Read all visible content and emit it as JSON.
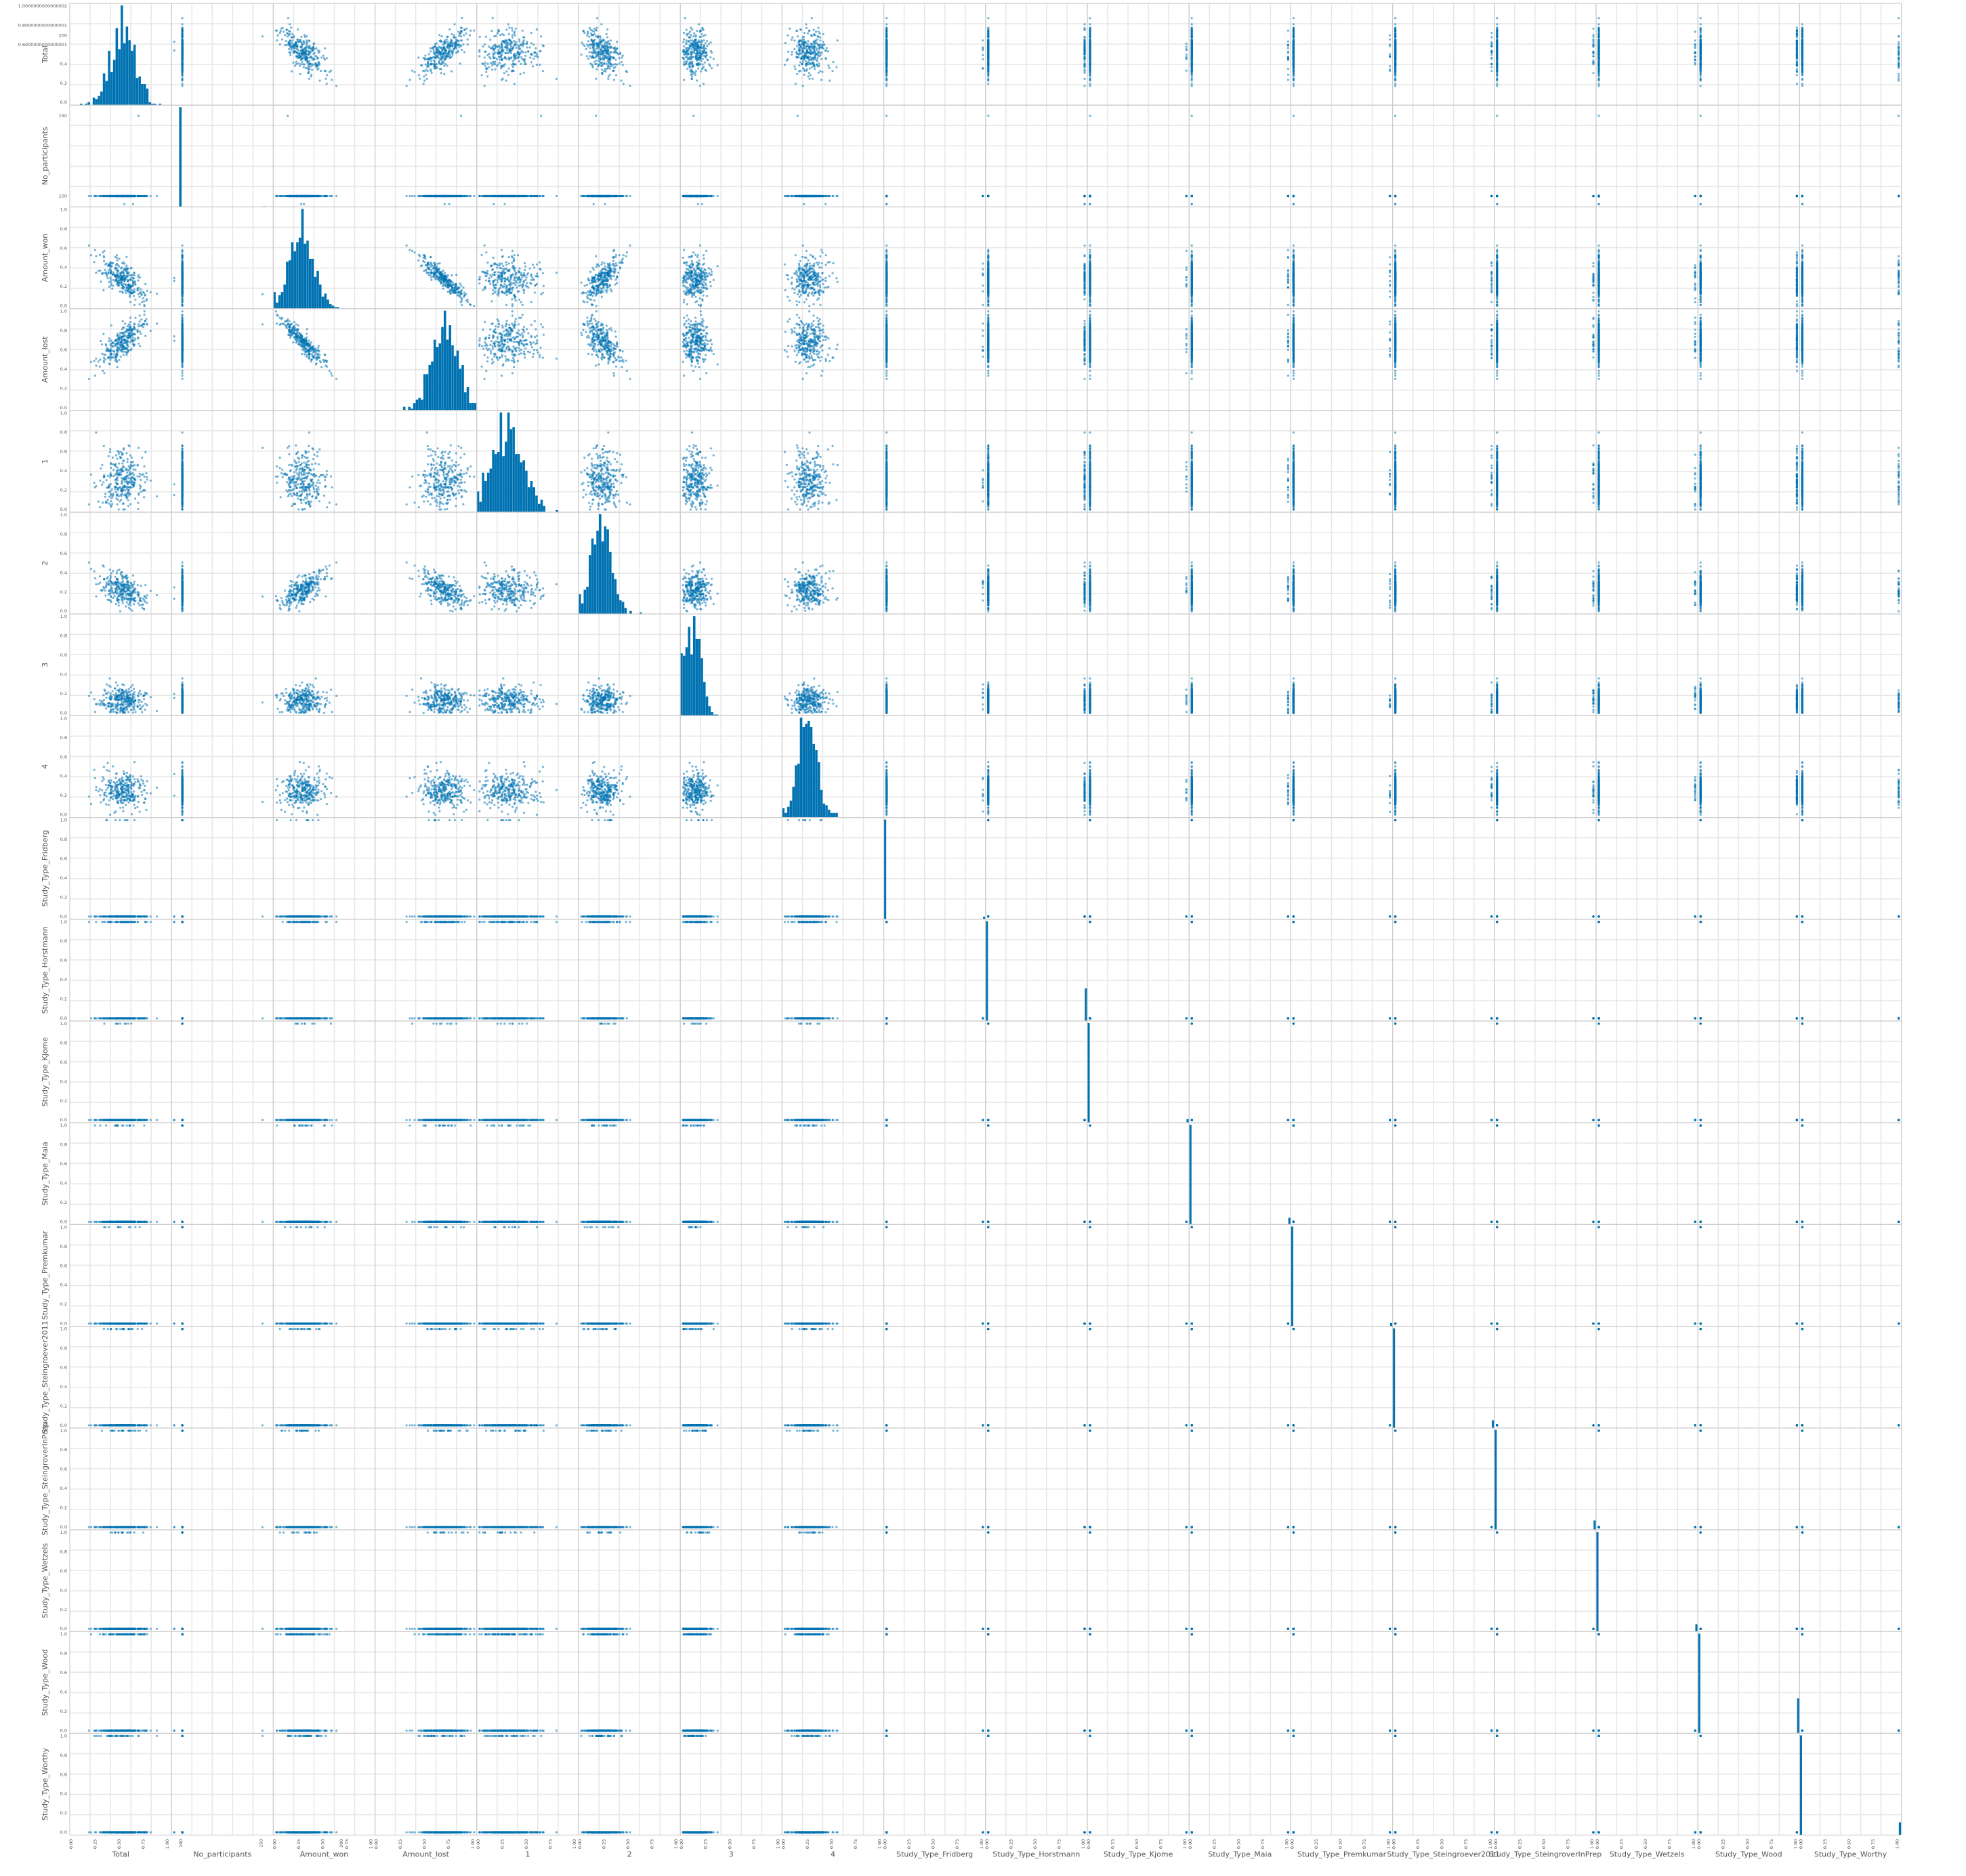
{
  "chart_data": {
    "type": "scatter_matrix",
    "title": "",
    "variables": [
      "Total",
      "No_participants",
      "Amount_won",
      "Amount_lost",
      "1",
      "2",
      "3",
      "4",
      "Study_Type_Fridberg",
      "Study_Type_Horstmann",
      "Study_Type_Kjome",
      "Study_Type_Maia",
      "Study_Type_Premkumar",
      "Study_Type_Steingroever2011",
      "Study_Type_SteingroverInPrep",
      "Study_Type_Wetzels",
      "Study_Type_Wood",
      "Study_Type_Worthy"
    ],
    "diagonal": "histogram",
    "off_diagonal": "scatter",
    "point_color": "#0072B2",
    "grid": true,
    "y_ticks_total": [
      "0.0",
      "0.2",
      "0.4",
      "0.6000000000000001",
      "0.8000000000000001",
      "1.0000000000000002"
    ],
    "y_ticks_no_participants": [
      "100",
      "150",
      "200"
    ],
    "y_ticks_unit": [
      "0.0",
      "0.2",
      "0.4",
      "0.6",
      "0.8",
      "1.0"
    ],
    "x_ticks_unit": [
      "0.00",
      "0.25",
      "0.50",
      "0.75",
      "1.00"
    ],
    "x_ticks_no_participants": [
      "100",
      "150",
      "200"
    ],
    "estimated_distributions": {
      "Total": {
        "center": 0.55,
        "spread": 0.12,
        "range": [
          0,
          1
        ]
      },
      "No_participants": {
        "values": [
          95,
          100,
          150
        ],
        "counts": [
          3,
          600,
          2
        ]
      },
      "Amount_won": {
        "center": 0.28,
        "spread": 0.13,
        "range": [
          0,
          1
        ]
      },
      "Amount_lost": {
        "center": 0.72,
        "spread": 0.12,
        "range": [
          0,
          1
        ]
      },
      "1": {
        "center": 0.3,
        "spread": 0.14,
        "range": [
          0,
          1
        ]
      },
      "2": {
        "center": 0.22,
        "spread": 0.1,
        "range": [
          0,
          1
        ]
      },
      "3": {
        "center": 0.12,
        "spread": 0.08,
        "range": [
          0,
          1
        ]
      },
      "4": {
        "center": 0.25,
        "spread": 0.1,
        "range": [
          0,
          1
        ]
      },
      "study_type_share_of_ones": [
        0.03,
        0.25,
        0.04,
        0.05,
        0.03,
        0.06,
        0.09,
        0.05,
        0.25,
        0.1
      ]
    }
  }
}
